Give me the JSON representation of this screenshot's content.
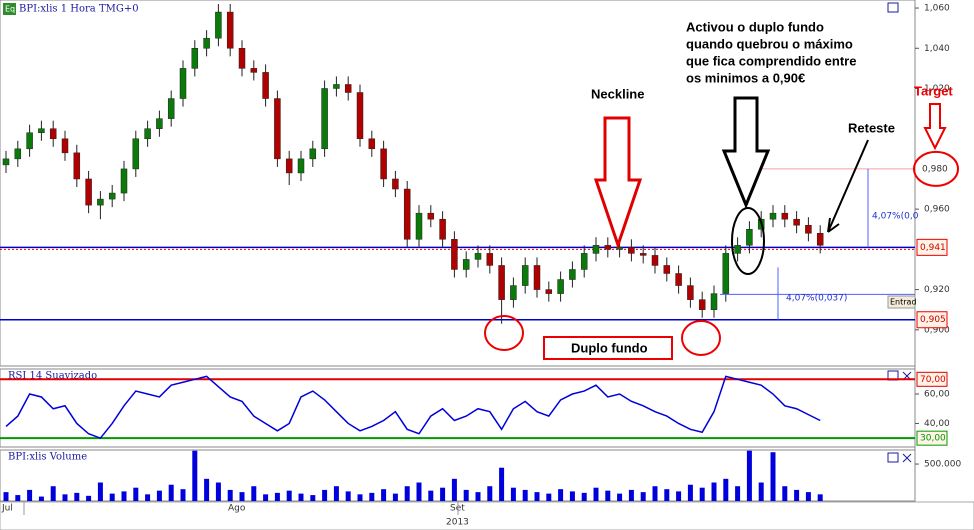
{
  "time_axis": {
    "labels": [
      "Jul",
      "Ago",
      "Set"
    ],
    "year": "2013"
  },
  "chart_data": [
    {
      "type": "candlestick",
      "title": "BPI:xlis 1 Hora TMG+0",
      "up_color": "#0a7a0a",
      "down_color": "#b00000",
      "open": [
        0.982,
        0.985,
        0.99,
        0.998,
        1.0,
        0.995,
        0.988,
        0.975,
        0.962,
        0.965,
        0.968,
        0.98,
        0.995,
        1.0,
        1.005,
        1.015,
        1.03,
        1.04,
        1.045,
        1.058,
        1.04,
        1.03,
        1.028,
        1.015,
        0.985,
        0.978,
        0.985,
        0.99,
        1.02,
        1.022,
        1.018,
        0.995,
        0.99,
        0.975,
        0.97,
        0.945,
        0.958,
        0.955,
        0.945,
        0.93,
        0.935,
        0.938,
        0.932,
        0.915,
        0.922,
        0.932,
        0.92,
        0.918,
        0.925,
        0.93,
        0.938,
        0.942,
        0.94,
        0.941,
        0.938,
        0.937,
        0.932,
        0.928,
        0.922,
        0.915,
        0.91,
        0.918,
        0.938,
        0.942,
        0.95,
        0.955,
        0.958,
        0.955,
        0.952,
        0.948
      ],
      "high": [
        0.989,
        0.994,
        1.002,
        1.004,
        1.004,
        0.999,
        0.992,
        0.979,
        0.969,
        0.972,
        0.984,
        0.999,
        1.004,
        1.009,
        1.019,
        1.034,
        1.044,
        1.049,
        1.062,
        1.062,
        1.044,
        1.034,
        1.032,
        1.019,
        0.989,
        0.989,
        0.994,
        1.024,
        1.026,
        1.026,
        1.022,
        0.999,
        0.994,
        0.979,
        0.974,
        0.962,
        0.962,
        0.959,
        0.949,
        0.939,
        0.942,
        0.942,
        0.936,
        0.926,
        0.936,
        0.936,
        0.924,
        0.929,
        0.934,
        0.942,
        0.946,
        0.946,
        0.945,
        0.945,
        0.942,
        0.941,
        0.936,
        0.932,
        0.926,
        0.919,
        0.922,
        0.942,
        0.946,
        0.954,
        0.959,
        0.962,
        0.962,
        0.959,
        0.956,
        0.952
      ],
      "low": [
        0.978,
        0.981,
        0.986,
        0.994,
        0.991,
        0.984,
        0.971,
        0.958,
        0.955,
        0.961,
        0.964,
        0.976,
        0.991,
        0.996,
        1.001,
        1.011,
        1.026,
        1.036,
        1.041,
        1.036,
        1.026,
        1.024,
        1.011,
        0.981,
        0.972,
        0.974,
        0.981,
        0.986,
        1.016,
        1.014,
        0.991,
        0.986,
        0.971,
        0.966,
        0.941,
        0.941,
        0.951,
        0.941,
        0.926,
        0.926,
        0.931,
        0.928,
        0.903,
        0.911,
        0.918,
        0.916,
        0.914,
        0.914,
        0.921,
        0.926,
        0.934,
        0.936,
        0.936,
        0.934,
        0.933,
        0.928,
        0.924,
        0.918,
        0.911,
        0.906,
        0.906,
        0.914,
        0.934,
        0.938,
        0.946,
        0.951,
        0.951,
        0.948,
        0.944,
        0.938
      ],
      "close": [
        0.985,
        0.99,
        0.998,
        1.0,
        0.995,
        0.988,
        0.975,
        0.962,
        0.965,
        0.968,
        0.98,
        0.995,
        1.0,
        1.005,
        1.015,
        1.03,
        1.04,
        1.045,
        1.058,
        1.04,
        1.03,
        1.028,
        1.015,
        0.985,
        0.978,
        0.985,
        0.99,
        1.02,
        1.022,
        1.018,
        0.995,
        0.99,
        0.975,
        0.97,
        0.945,
        0.958,
        0.955,
        0.945,
        0.93,
        0.935,
        0.938,
        0.932,
        0.915,
        0.922,
        0.932,
        0.92,
        0.918,
        0.925,
        0.93,
        0.938,
        0.942,
        0.94,
        0.941,
        0.938,
        0.937,
        0.932,
        0.928,
        0.922,
        0.915,
        0.91,
        0.918,
        0.938,
        0.942,
        0.95,
        0.955,
        0.958,
        0.955,
        0.952,
        0.948,
        0.942
      ],
      "ylim": [
        0.882,
        1.064
      ],
      "yticks": [
        {
          "value": 1.06,
          "label": "1,060"
        },
        {
          "value": 1.04,
          "label": "1,040"
        },
        {
          "value": 1.02,
          "label": "1,020"
        },
        {
          "value": 0.96,
          "label": "0,960"
        },
        {
          "value": 0.92,
          "label": "0,920"
        },
        {
          "value": 0.9,
          "label": "0,900"
        }
      ],
      "levels": [
        {
          "value": 0.941,
          "label": "0,941"
        },
        {
          "value": 0.905,
          "label": "0,905"
        }
      ],
      "target": {
        "value": 0.98,
        "label": "0,980"
      },
      "annotations": {
        "neckline": "Neckline",
        "activation": [
          "Activou o duplo fundo",
          "quando quebrou o máximo",
          "que fica comprendido entre",
          "os minimos a 0,90€"
        ],
        "retest": "Reteste",
        "target": "Target",
        "double_bottom": "Duplo fundo",
        "measure1": "4,07%(0,037)",
        "measure2": "4,07%(0,0",
        "entry": "Entrad"
      }
    },
    {
      "type": "line",
      "title": "RSI 14 Suavizado",
      "color": "#0000dd",
      "values": [
        38,
        45,
        60,
        58,
        50,
        52,
        40,
        33,
        30,
        40,
        52,
        62,
        60,
        58,
        66,
        68,
        70,
        72,
        65,
        58,
        55,
        45,
        40,
        35,
        40,
        58,
        62,
        56,
        48,
        40,
        35,
        38,
        42,
        48,
        36,
        33,
        45,
        50,
        42,
        45,
        50,
        48,
        36,
        50,
        55,
        48,
        45,
        56,
        60,
        62,
        66,
        58,
        60,
        55,
        52,
        48,
        45,
        40,
        36,
        34,
        48,
        72,
        70,
        68,
        66,
        60,
        52,
        50,
        46,
        42
      ],
      "ylim": [
        24,
        77
      ],
      "yticks": [
        {
          "value": 60,
          "label": "60,00"
        },
        {
          "value": 40,
          "label": "40,00"
        }
      ],
      "levels": [
        {
          "value": 70,
          "label": "70,00",
          "color": "#e00000"
        },
        {
          "value": 30,
          "label": "30,00",
          "color": "#009900"
        }
      ]
    },
    {
      "type": "bar",
      "title": "BPI:xlis Volume",
      "color": "#0000dd",
      "values": [
        120000,
        80000,
        150000,
        60000,
        200000,
        90000,
        110000,
        70000,
        250000,
        100000,
        130000,
        180000,
        90000,
        140000,
        220000,
        160000,
        680000,
        300000,
        250000,
        150000,
        120000,
        200000,
        90000,
        110000,
        140000,
        100000,
        80000,
        150000,
        200000,
        130000,
        90000,
        110000,
        160000,
        100000,
        200000,
        250000,
        140000,
        180000,
        300000,
        150000,
        120000,
        200000,
        450000,
        180000,
        150000,
        120000,
        100000,
        160000,
        130000,
        110000,
        180000,
        140000,
        100000,
        150000,
        120000,
        200000,
        160000,
        130000,
        220000,
        180000,
        250000,
        300000,
        200000,
        680000,
        250000,
        660000,
        200000,
        150000,
        120000,
        90000
      ],
      "ylim": [
        0,
        690000
      ],
      "yticks": [
        {
          "value": 500000,
          "label": "500.000"
        }
      ]
    }
  ]
}
